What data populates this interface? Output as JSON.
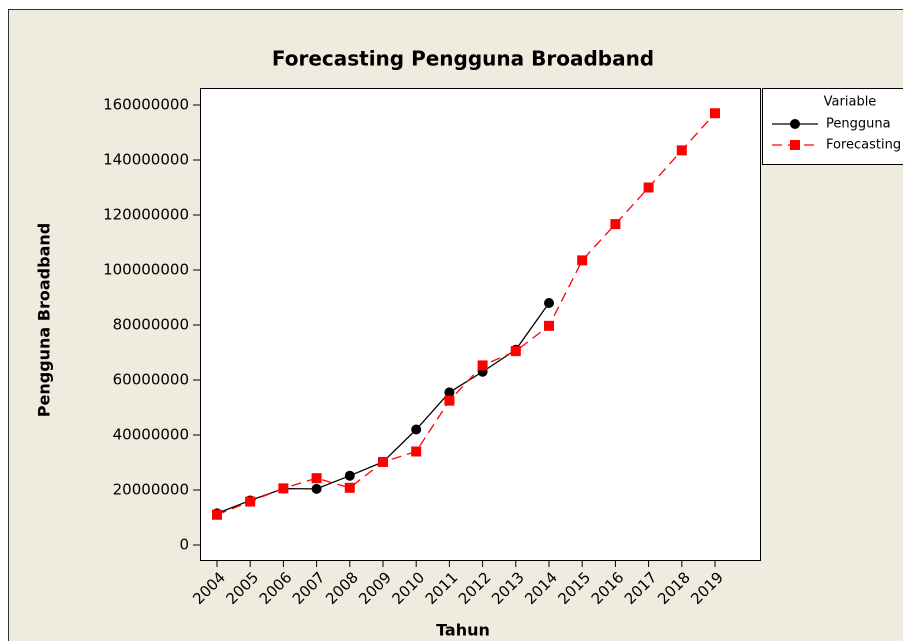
{
  "chart_data": {
    "type": "line",
    "title": "Forecasting Pengguna Broadband",
    "xlabel": "Tahun",
    "ylabel": "Pengguna Broadband",
    "legend_title": "Variable",
    "legend": "outside-top-right",
    "categories": [
      "2004",
      "2005",
      "2006",
      "2007",
      "2008",
      "2009",
      "2010",
      "2011",
      "2012",
      "2013",
      "2014",
      "2015",
      "2016",
      "2017",
      "2018",
      "2019"
    ],
    "series": [
      {
        "name": "Pengguna",
        "color": "#000000",
        "marker": "circle",
        "dash": "solid",
        "values": [
          11500000,
          16200000,
          20500000,
          20400000,
          25200000,
          30200000,
          42000000,
          55500000,
          63000000,
          71000000,
          88000000,
          null,
          null,
          null,
          null,
          null
        ]
      },
      {
        "name": "Forecasting",
        "color": "#ff0000",
        "marker": "square",
        "dash": "dashed",
        "values": [
          11000000,
          15800000,
          20600000,
          24300000,
          20800000,
          30200000,
          34000000,
          52500000,
          65300000,
          70500000,
          79700000,
          103500000,
          116700000,
          130000000,
          143500000,
          157000000
        ]
      }
    ],
    "ylim": [
      0,
      160000000
    ],
    "yticks": [
      0,
      20000000,
      40000000,
      60000000,
      80000000,
      100000000,
      120000000,
      140000000,
      160000000
    ]
  }
}
